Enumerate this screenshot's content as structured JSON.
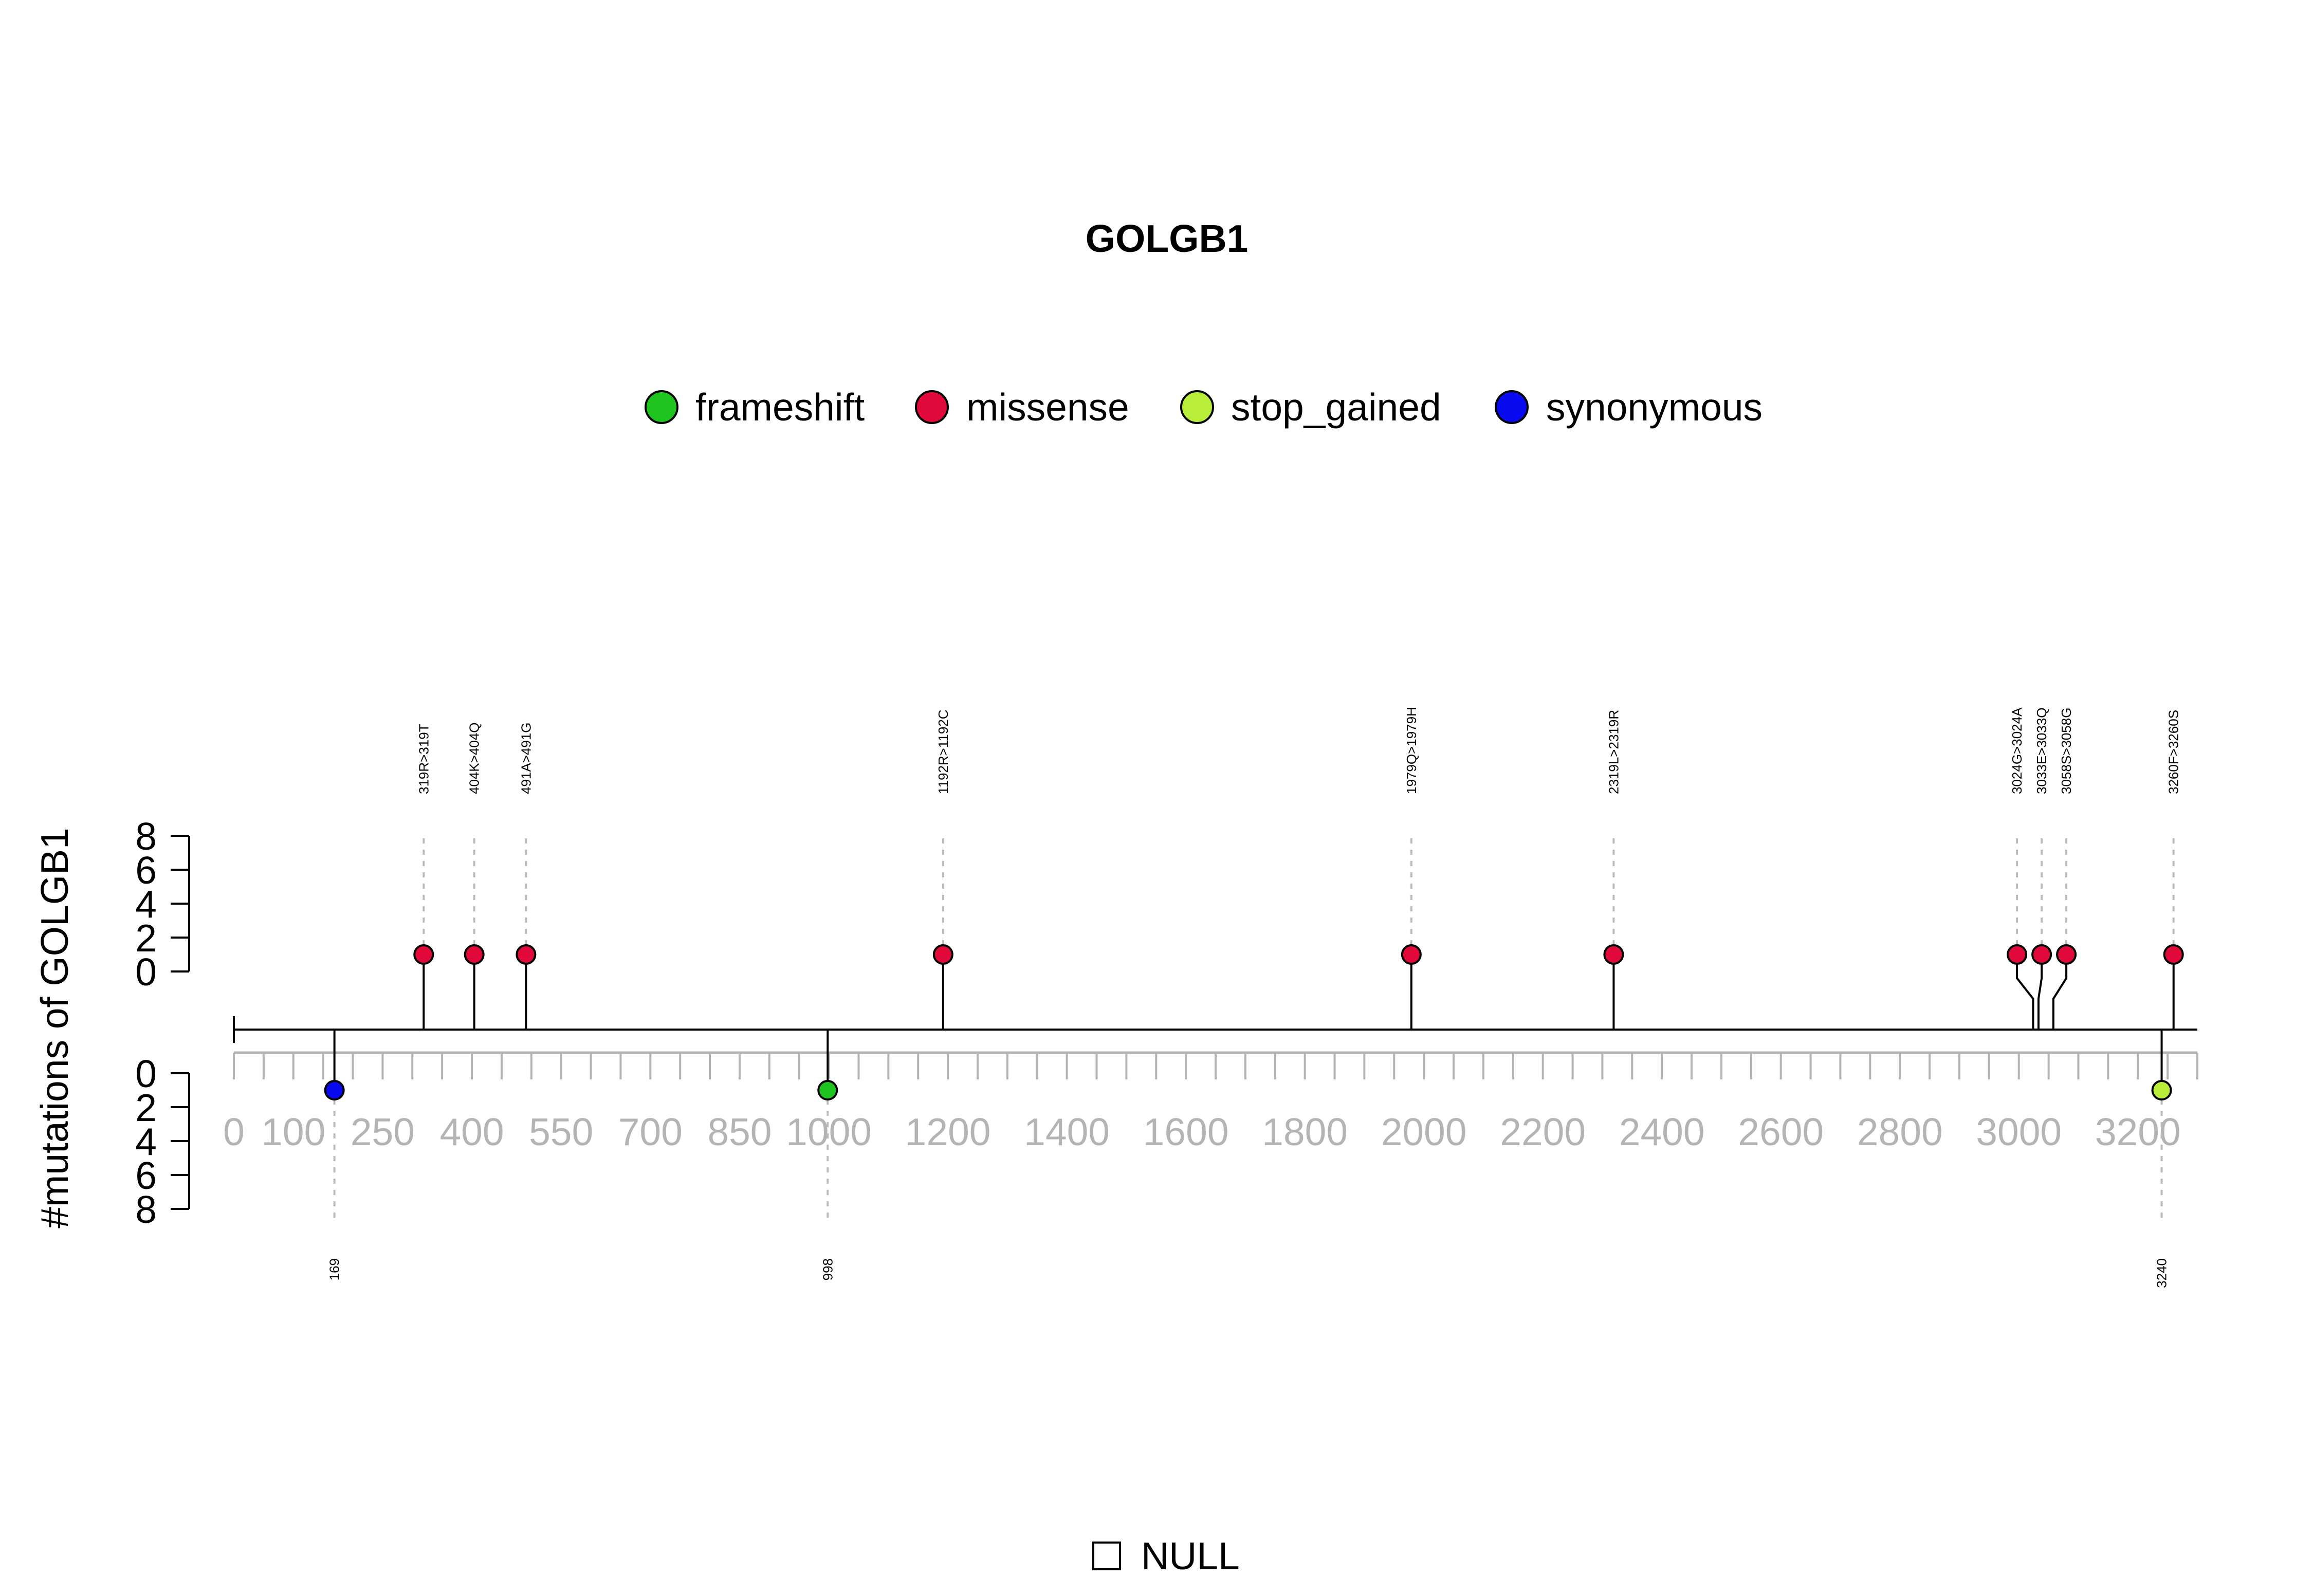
{
  "chart_data": {
    "type": "lollipop",
    "title": "GOLGB1",
    "ylabel": "#mutations of GOLGB1",
    "xlim": [
      0,
      3300
    ],
    "x_ticks": [
      0,
      100,
      250,
      400,
      550,
      700,
      850,
      1000,
      1200,
      1400,
      1600,
      1800,
      2000,
      2200,
      2400,
      2600,
      2800,
      3000,
      3200
    ],
    "y_ticks": [
      0,
      2,
      4,
      6,
      8
    ],
    "ylim": [
      0,
      8
    ],
    "legend": [
      {
        "name": "frameshift",
        "color": "#1fc41f"
      },
      {
        "name": "missense",
        "color": "#e0093a"
      },
      {
        "name": "stop_gained",
        "color": "#b8ee3a"
      },
      {
        "name": "synonymous",
        "color": "#0a0af0"
      }
    ],
    "upper_mutations": [
      {
        "label": "319R>319T",
        "position": 319,
        "count": 1,
        "type": "missense"
      },
      {
        "label": "404K>404Q",
        "position": 404,
        "count": 1,
        "type": "missense"
      },
      {
        "label": "491A>491G",
        "position": 491,
        "count": 1,
        "type": "missense"
      },
      {
        "label": "1192R>1192C",
        "position": 1192,
        "count": 1,
        "type": "missense"
      },
      {
        "label": "1979Q>1979H",
        "position": 1979,
        "count": 1,
        "type": "missense"
      },
      {
        "label": "2319L>2319R",
        "position": 2319,
        "count": 1,
        "type": "missense"
      },
      {
        "label": "3024G>3024A",
        "position": 3024,
        "count": 1,
        "type": "missense"
      },
      {
        "label": "3033E>3033Q",
        "position": 3033,
        "count": 1,
        "type": "missense"
      },
      {
        "label": "3058S>3058G",
        "position": 3058,
        "count": 1,
        "type": "missense"
      },
      {
        "label": "3260F>3260S",
        "position": 3260,
        "count": 1,
        "type": "missense"
      }
    ],
    "lower_mutations": [
      {
        "label": "169",
        "position": 169,
        "count": 1,
        "type": "synonymous"
      },
      {
        "label": "998",
        "position": 998,
        "count": 1,
        "type": "frameshift"
      },
      {
        "label": "3240",
        "position": 3240,
        "count": 1,
        "type": "stop_gained"
      }
    ],
    "domain_legend": "NULL"
  }
}
